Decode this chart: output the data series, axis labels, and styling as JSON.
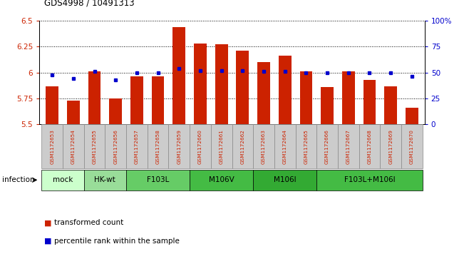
{
  "title": "GDS4998 / 10491313",
  "samples": [
    "GSM1172653",
    "GSM1172654",
    "GSM1172655",
    "GSM1172656",
    "GSM1172657",
    "GSM1172658",
    "GSM1172659",
    "GSM1172660",
    "GSM1172661",
    "GSM1172662",
    "GSM1172663",
    "GSM1172664",
    "GSM1172665",
    "GSM1172666",
    "GSM1172667",
    "GSM1172668",
    "GSM1172669",
    "GSM1172670"
  ],
  "bar_values": [
    5.87,
    5.73,
    6.01,
    5.75,
    5.96,
    5.96,
    6.44,
    6.28,
    6.27,
    6.21,
    6.1,
    6.16,
    6.01,
    5.86,
    6.01,
    5.93,
    5.87,
    5.66
  ],
  "percentile_values": [
    48,
    44,
    51,
    43,
    50,
    50,
    54,
    52,
    52,
    52,
    51,
    51,
    50,
    50,
    50,
    50,
    50,
    46
  ],
  "ylim_left": [
    5.5,
    6.5
  ],
  "ylim_right": [
    0,
    100
  ],
  "yticks_left": [
    5.5,
    5.75,
    6.0,
    6.25,
    6.5
  ],
  "ytick_labels_left": [
    "5.5",
    "5.75",
    "6",
    "6.25",
    "6.5"
  ],
  "yticks_right": [
    0,
    25,
    50,
    75,
    100
  ],
  "ytick_labels_right": [
    "0",
    "25",
    "50",
    "75",
    "100%"
  ],
  "bar_color": "#cc2200",
  "dot_color": "#0000cc",
  "grid_color": "#000000",
  "infection_label": "infection",
  "legend_items": [
    {
      "label": "transformed count",
      "color": "#cc2200"
    },
    {
      "label": "percentile rank within the sample",
      "color": "#0000cc"
    }
  ],
  "bar_width": 0.6,
  "xlabel_tick_color": "#cc2200",
  "ylabel_left_color": "#cc2200",
  "ylabel_right_color": "#0000cc",
  "group_spans": [
    {
      "label": "mock",
      "start": 0,
      "end": 1,
      "color": "#ccffcc"
    },
    {
      "label": "HK-wt",
      "start": 2,
      "end": 3,
      "color": "#99dd99"
    },
    {
      "label": "F103L",
      "start": 4,
      "end": 6,
      "color": "#66cc66"
    },
    {
      "label": "M106V",
      "start": 7,
      "end": 9,
      "color": "#44bb44"
    },
    {
      "label": "M106I",
      "start": 10,
      "end": 12,
      "color": "#33aa33"
    },
    {
      "label": "F103L+M106I",
      "start": 13,
      "end": 17,
      "color": "#44bb44"
    }
  ],
  "sample_box_color": "#cccccc",
  "sample_box_edge": "#888888"
}
